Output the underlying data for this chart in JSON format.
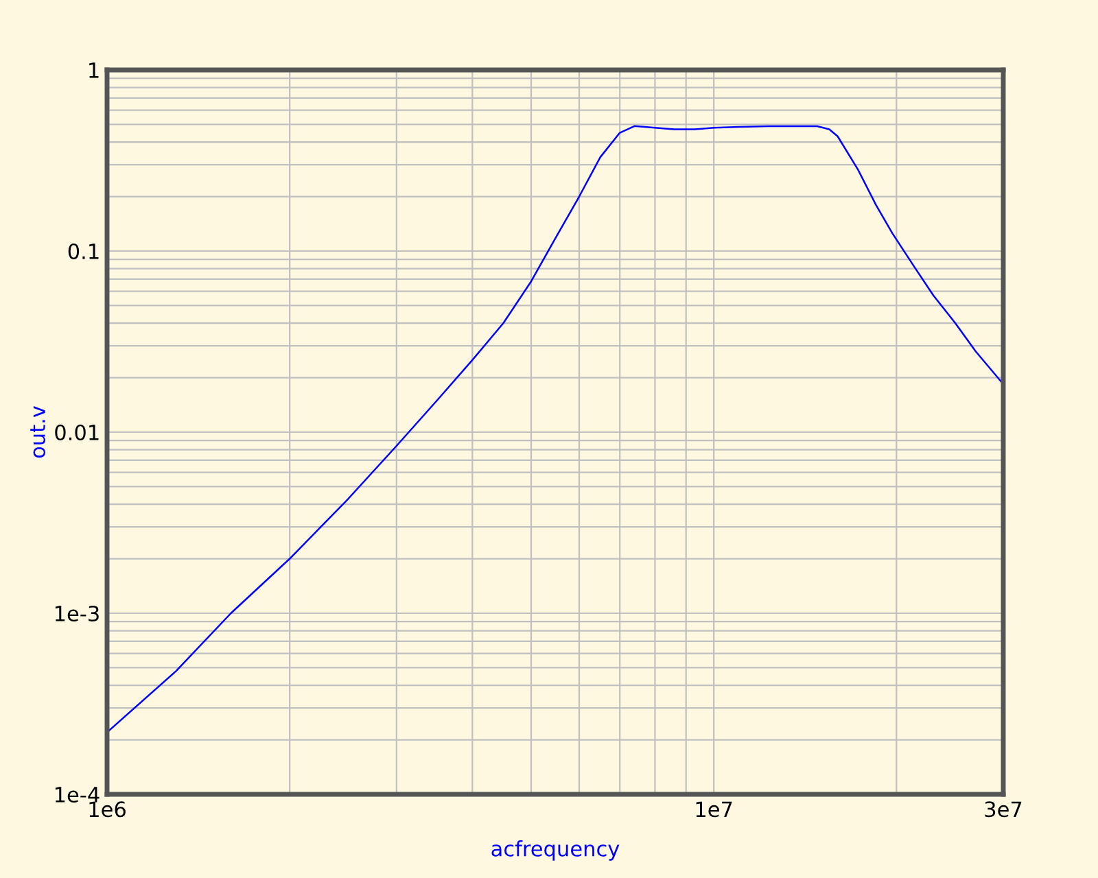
{
  "chart_data": {
    "type": "line",
    "xlabel": "acfrequency",
    "ylabel": "out.v",
    "log": "xy",
    "grid": true,
    "marker": "none",
    "line_style": "solid",
    "x": [
      1000000.0,
      1300000.0,
      1600000.0,
      2000000.0,
      2500000.0,
      3000000.0,
      3500000.0,
      4000000.0,
      4500000.0,
      5000000.0,
      5500000.0,
      6000000.0,
      6500000.0,
      7000000.0,
      7400000.0,
      8000000.0,
      8600000.0,
      9300000.0,
      10000000.0,
      11000000.0,
      12300000.0,
      13500000.0,
      14800000.0,
      15500000.0,
      16000000.0,
      17300000.0,
      18500000.0,
      19700000.0,
      21500000.0,
      23000000.0,
      25000000.0,
      27000000.0,
      30000000.0
    ],
    "series": [
      {
        "color": "#0000ff",
        "values": [
          0.00022,
          0.00048,
          0.001,
          0.002,
          0.0043,
          0.0084,
          0.015,
          0.025,
          0.04,
          0.068,
          0.12,
          0.2,
          0.33,
          0.45,
          0.49,
          0.48,
          0.47,
          0.47,
          0.48,
          0.485,
          0.489,
          0.489,
          0.489,
          0.47,
          0.43,
          0.28,
          0.18,
          0.125,
          0.08,
          0.057,
          0.04,
          0.028,
          0.0184
        ]
      }
    ],
    "xlim": [
      1000000.0,
      30000000.0
    ],
    "ylim": [
      0.0001,
      1
    ],
    "xticks": [
      {
        "value": 1000000.0,
        "label": "1e6"
      },
      {
        "value": 2000000.0,
        "label": null
      },
      {
        "value": 3000000.0,
        "label": null
      },
      {
        "value": 4000000.0,
        "label": null
      },
      {
        "value": 5000000.0,
        "label": null
      },
      {
        "value": 6000000.0,
        "label": null
      },
      {
        "value": 7000000.0,
        "label": null
      },
      {
        "value": 8000000.0,
        "label": null
      },
      {
        "value": 9000000.0,
        "label": null
      },
      {
        "value": 10000000.0,
        "label": "1e7"
      },
      {
        "value": 20000000.0,
        "label": null
      },
      {
        "value": 30000000.0,
        "label": "3e7"
      }
    ],
    "yticks": [
      {
        "value": 0.0001,
        "label": "1e-4"
      },
      {
        "value": 0.0002,
        "label": null
      },
      {
        "value": 0.0003,
        "label": null
      },
      {
        "value": 0.0004,
        "label": null
      },
      {
        "value": 0.0005,
        "label": null
      },
      {
        "value": 0.0006,
        "label": null
      },
      {
        "value": 0.0007,
        "label": null
      },
      {
        "value": 0.0008,
        "label": null
      },
      {
        "value": 0.0009,
        "label": null
      },
      {
        "value": 0.001,
        "label": "1e-3"
      },
      {
        "value": 0.002,
        "label": null
      },
      {
        "value": 0.003,
        "label": null
      },
      {
        "value": 0.004,
        "label": null
      },
      {
        "value": 0.005,
        "label": null
      },
      {
        "value": 0.006,
        "label": null
      },
      {
        "value": 0.007,
        "label": null
      },
      {
        "value": 0.008,
        "label": null
      },
      {
        "value": 0.009,
        "label": null
      },
      {
        "value": 0.01,
        "label": "0.01"
      },
      {
        "value": 0.02,
        "label": null
      },
      {
        "value": 0.03,
        "label": null
      },
      {
        "value": 0.04,
        "label": null
      },
      {
        "value": 0.05,
        "label": null
      },
      {
        "value": 0.06,
        "label": null
      },
      {
        "value": 0.07,
        "label": null
      },
      {
        "value": 0.08,
        "label": null
      },
      {
        "value": 0.09,
        "label": null
      },
      {
        "value": 0.1,
        "label": "0.1"
      },
      {
        "value": 0.2,
        "label": null
      },
      {
        "value": 0.3,
        "label": null
      },
      {
        "value": 0.4,
        "label": null
      },
      {
        "value": 0.5,
        "label": null
      },
      {
        "value": 0.6,
        "label": null
      },
      {
        "value": 0.7,
        "label": null
      },
      {
        "value": 0.8,
        "label": null
      },
      {
        "value": 0.9,
        "label": null
      },
      {
        "value": 1,
        "label": "1"
      }
    ]
  }
}
